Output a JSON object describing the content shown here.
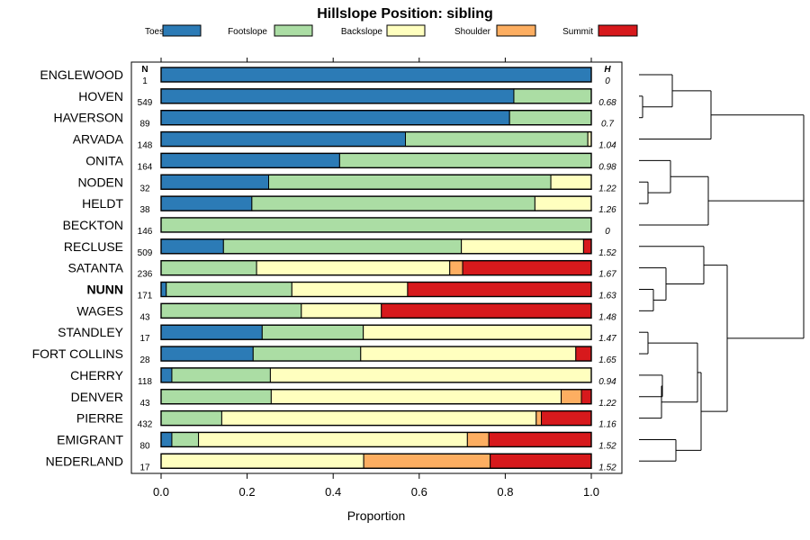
{
  "chart_data": {
    "type": "bar",
    "orientation": "horizontal",
    "stacked": true,
    "title": "Hillslope Position: sibling",
    "xlabel": "Proportion",
    "xlim": [
      0,
      1
    ],
    "x_ticks": [
      "0.0",
      "0.2",
      "0.4",
      "0.6",
      "0.8",
      "1.0"
    ],
    "x_tick_values": [
      0,
      0.2,
      0.4,
      0.6,
      0.8,
      1.0
    ],
    "n_header": "N",
    "h_header": "H",
    "legend": [
      {
        "name": "Toeslope",
        "color": "#2C7BB6"
      },
      {
        "name": "Footslope",
        "color": "#ABDDA4"
      },
      {
        "name": "Backslope",
        "color": "#FFFFBF"
      },
      {
        "name": "Shoulder",
        "color": "#FDAE61"
      },
      {
        "name": "Summit",
        "color": "#D7191C"
      }
    ],
    "highlight": "NUNN",
    "rows": [
      {
        "name": "ENGLEWOOD",
        "n": "1",
        "h": "0",
        "values": [
          1.0,
          0.0,
          0.0,
          0.0,
          0.0
        ]
      },
      {
        "name": "HOVEN",
        "n": "549",
        "h": "0.68",
        "values": [
          0.82,
          0.18,
          0.0,
          0.0,
          0.0
        ]
      },
      {
        "name": "HAVERSON",
        "n": "89",
        "h": "0.7",
        "values": [
          0.81,
          0.19,
          0.0,
          0.0,
          0.0
        ]
      },
      {
        "name": "ARVADA",
        "n": "148",
        "h": "1.04",
        "values": [
          0.568,
          0.424,
          0.008,
          0.0,
          0.0
        ]
      },
      {
        "name": "ONITA",
        "n": "164",
        "h": "0.98",
        "values": [
          0.415,
          0.585,
          0.0,
          0.0,
          0.0
        ]
      },
      {
        "name": "NODEN",
        "n": "32",
        "h": "1.22",
        "values": [
          0.25,
          0.656,
          0.094,
          0.0,
          0.0
        ]
      },
      {
        "name": "HELDT",
        "n": "38",
        "h": "1.26",
        "values": [
          0.211,
          0.658,
          0.131,
          0.0,
          0.0
        ]
      },
      {
        "name": "BECKTON",
        "n": "146",
        "h": "0",
        "values": [
          0.0,
          1.0,
          0.0,
          0.0,
          0.0
        ]
      },
      {
        "name": "RECLUSE",
        "n": "509",
        "h": "1.52",
        "values": [
          0.145,
          0.553,
          0.284,
          0.0,
          0.018
        ]
      },
      {
        "name": "SATANTA",
        "n": "236",
        "h": "1.67",
        "values": [
          0.0,
          0.222,
          0.449,
          0.03,
          0.299
        ]
      },
      {
        "name": "NUNN",
        "n": "171",
        "h": "1.63",
        "values": [
          0.012,
          0.292,
          0.269,
          0.0,
          0.427
        ]
      },
      {
        "name": "WAGES",
        "n": "43",
        "h": "1.48",
        "values": [
          0.0,
          0.326,
          0.186,
          0.0,
          0.488
        ]
      },
      {
        "name": "STANDLEY",
        "n": "17",
        "h": "1.47",
        "values": [
          0.235,
          0.235,
          0.53,
          0.0,
          0.0
        ]
      },
      {
        "name": "FORT COLLINS",
        "n": "28",
        "h": "1.65",
        "values": [
          0.214,
          0.25,
          0.5,
          0.0,
          0.036
        ]
      },
      {
        "name": "CHERRY",
        "n": "118",
        "h": "0.94",
        "values": [
          0.025,
          0.229,
          0.746,
          0.0,
          0.0
        ]
      },
      {
        "name": "DENVER",
        "n": "43",
        "h": "1.22",
        "values": [
          0.0,
          0.256,
          0.674,
          0.047,
          0.023
        ]
      },
      {
        "name": "PIERRE",
        "n": "432",
        "h": "1.16",
        "values": [
          0.0,
          0.141,
          0.731,
          0.012,
          0.116
        ]
      },
      {
        "name": "EMIGRANT",
        "n": "80",
        "h": "1.52",
        "values": [
          0.025,
          0.062,
          0.625,
          0.05,
          0.238
        ]
      },
      {
        "name": "NEDERLAND",
        "n": "17",
        "h": "1.52",
        "values": [
          0.0,
          0.0,
          0.471,
          0.294,
          0.235
        ]
      }
    ]
  }
}
